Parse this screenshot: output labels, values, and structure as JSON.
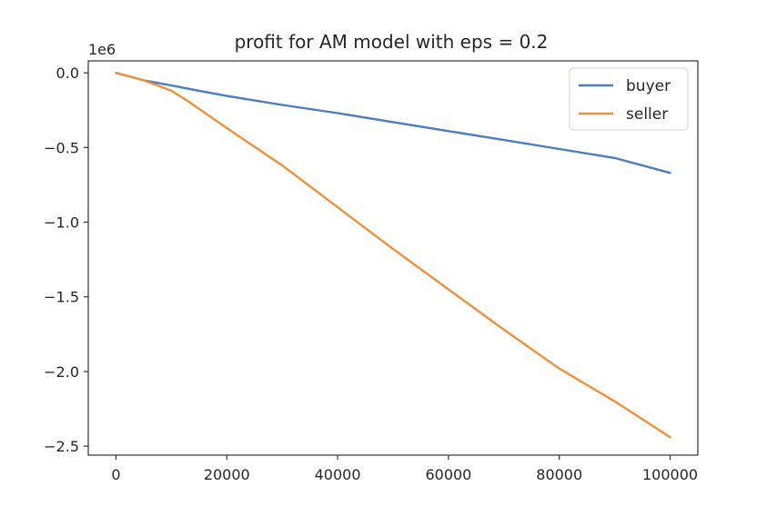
{
  "chart_data": {
    "type": "line",
    "title": "profit for AM model with eps = 0.2",
    "xlabel": "",
    "ylabel": "",
    "y_offset_label": "1e6",
    "xlim": [
      -5000,
      105000
    ],
    "ylim": [
      -2.56,
      0.08
    ],
    "x_ticks": [
      0,
      20000,
      40000,
      60000,
      80000,
      100000
    ],
    "x_tick_labels": [
      "0",
      "20000",
      "40000",
      "60000",
      "80000",
      "100000"
    ],
    "y_ticks": [
      0.0,
      -0.5,
      -1.0,
      -1.5,
      -2.0,
      -2.5
    ],
    "y_tick_labels": [
      "0.0",
      "−0.5",
      "−1.0",
      "−1.5",
      "−2.0",
      "−2.5"
    ],
    "grid": false,
    "legend_position": "top-right",
    "series": [
      {
        "name": "buyer",
        "color": "#4c7dbd",
        "x": [
          0,
          5000,
          10000,
          15000,
          20000,
          30000,
          40000,
          50000,
          60000,
          70000,
          80000,
          90000,
          100000
        ],
        "y": [
          0.0,
          -0.05,
          -0.085,
          -0.12,
          -0.155,
          -0.215,
          -0.27,
          -0.33,
          -0.39,
          -0.45,
          -0.51,
          -0.57,
          -0.67
        ]
      },
      {
        "name": "seller",
        "color": "#f0913a",
        "x": [
          0,
          5000,
          10000,
          13000,
          20000,
          30000,
          40000,
          50000,
          60000,
          70000,
          80000,
          90000,
          100000
        ],
        "y": [
          0.0,
          -0.05,
          -0.12,
          -0.19,
          -0.37,
          -0.62,
          -0.9,
          -1.18,
          -1.45,
          -1.72,
          -1.98,
          -2.2,
          -2.44
        ]
      }
    ]
  }
}
